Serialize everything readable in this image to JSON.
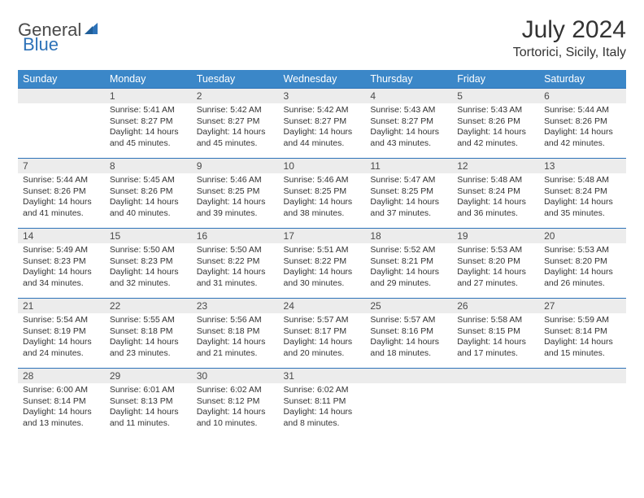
{
  "logo": {
    "general": "General",
    "blue": "Blue"
  },
  "title": "July 2024",
  "location": "Tortorici, Sicily, Italy",
  "colors": {
    "header_bg": "#3b87c8",
    "header_text": "#ffffff",
    "daynum_bg": "#ececec",
    "border": "#2d72b8",
    "text": "#333333",
    "logo_gray": "#4a4a4a",
    "logo_blue": "#2d72b8"
  },
  "weekdays": [
    "Sunday",
    "Monday",
    "Tuesday",
    "Wednesday",
    "Thursday",
    "Friday",
    "Saturday"
  ],
  "weeks": [
    [
      null,
      {
        "n": "1",
        "sr": "5:41 AM",
        "ss": "8:27 PM",
        "dl": "14 hours and 45 minutes."
      },
      {
        "n": "2",
        "sr": "5:42 AM",
        "ss": "8:27 PM",
        "dl": "14 hours and 45 minutes."
      },
      {
        "n": "3",
        "sr": "5:42 AM",
        "ss": "8:27 PM",
        "dl": "14 hours and 44 minutes."
      },
      {
        "n": "4",
        "sr": "5:43 AM",
        "ss": "8:27 PM",
        "dl": "14 hours and 43 minutes."
      },
      {
        "n": "5",
        "sr": "5:43 AM",
        "ss": "8:26 PM",
        "dl": "14 hours and 42 minutes."
      },
      {
        "n": "6",
        "sr": "5:44 AM",
        "ss": "8:26 PM",
        "dl": "14 hours and 42 minutes."
      }
    ],
    [
      {
        "n": "7",
        "sr": "5:44 AM",
        "ss": "8:26 PM",
        "dl": "14 hours and 41 minutes."
      },
      {
        "n": "8",
        "sr": "5:45 AM",
        "ss": "8:26 PM",
        "dl": "14 hours and 40 minutes."
      },
      {
        "n": "9",
        "sr": "5:46 AM",
        "ss": "8:25 PM",
        "dl": "14 hours and 39 minutes."
      },
      {
        "n": "10",
        "sr": "5:46 AM",
        "ss": "8:25 PM",
        "dl": "14 hours and 38 minutes."
      },
      {
        "n": "11",
        "sr": "5:47 AM",
        "ss": "8:25 PM",
        "dl": "14 hours and 37 minutes."
      },
      {
        "n": "12",
        "sr": "5:48 AM",
        "ss": "8:24 PM",
        "dl": "14 hours and 36 minutes."
      },
      {
        "n": "13",
        "sr": "5:48 AM",
        "ss": "8:24 PM",
        "dl": "14 hours and 35 minutes."
      }
    ],
    [
      {
        "n": "14",
        "sr": "5:49 AM",
        "ss": "8:23 PM",
        "dl": "14 hours and 34 minutes."
      },
      {
        "n": "15",
        "sr": "5:50 AM",
        "ss": "8:23 PM",
        "dl": "14 hours and 32 minutes."
      },
      {
        "n": "16",
        "sr": "5:50 AM",
        "ss": "8:22 PM",
        "dl": "14 hours and 31 minutes."
      },
      {
        "n": "17",
        "sr": "5:51 AM",
        "ss": "8:22 PM",
        "dl": "14 hours and 30 minutes."
      },
      {
        "n": "18",
        "sr": "5:52 AM",
        "ss": "8:21 PM",
        "dl": "14 hours and 29 minutes."
      },
      {
        "n": "19",
        "sr": "5:53 AM",
        "ss": "8:20 PM",
        "dl": "14 hours and 27 minutes."
      },
      {
        "n": "20",
        "sr": "5:53 AM",
        "ss": "8:20 PM",
        "dl": "14 hours and 26 minutes."
      }
    ],
    [
      {
        "n": "21",
        "sr": "5:54 AM",
        "ss": "8:19 PM",
        "dl": "14 hours and 24 minutes."
      },
      {
        "n": "22",
        "sr": "5:55 AM",
        "ss": "8:18 PM",
        "dl": "14 hours and 23 minutes."
      },
      {
        "n": "23",
        "sr": "5:56 AM",
        "ss": "8:18 PM",
        "dl": "14 hours and 21 minutes."
      },
      {
        "n": "24",
        "sr": "5:57 AM",
        "ss": "8:17 PM",
        "dl": "14 hours and 20 minutes."
      },
      {
        "n": "25",
        "sr": "5:57 AM",
        "ss": "8:16 PM",
        "dl": "14 hours and 18 minutes."
      },
      {
        "n": "26",
        "sr": "5:58 AM",
        "ss": "8:15 PM",
        "dl": "14 hours and 17 minutes."
      },
      {
        "n": "27",
        "sr": "5:59 AM",
        "ss": "8:14 PM",
        "dl": "14 hours and 15 minutes."
      }
    ],
    [
      {
        "n": "28",
        "sr": "6:00 AM",
        "ss": "8:14 PM",
        "dl": "14 hours and 13 minutes."
      },
      {
        "n": "29",
        "sr": "6:01 AM",
        "ss": "8:13 PM",
        "dl": "14 hours and 11 minutes."
      },
      {
        "n": "30",
        "sr": "6:02 AM",
        "ss": "8:12 PM",
        "dl": "14 hours and 10 minutes."
      },
      {
        "n": "31",
        "sr": "6:02 AM",
        "ss": "8:11 PM",
        "dl": "14 hours and 8 minutes."
      },
      null,
      null,
      null
    ]
  ],
  "labels": {
    "sunrise": "Sunrise:",
    "sunset": "Sunset:",
    "daylight": "Daylight:"
  }
}
